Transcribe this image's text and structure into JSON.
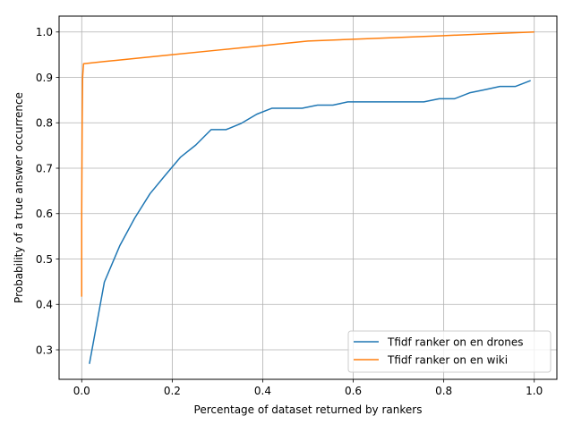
{
  "chart_data": {
    "type": "line",
    "title": "",
    "xlabel": "Percentage of dataset returned by rankers",
    "ylabel": "Probability of a true answer occurrence",
    "xlim": [
      -0.05,
      1.05
    ],
    "ylim": [
      0.235,
      1.035
    ],
    "xticks": [
      0.0,
      0.2,
      0.4,
      0.6,
      0.8,
      1.0
    ],
    "xtick_labels": [
      "0.0",
      "0.2",
      "0.4",
      "0.6",
      "0.8",
      "1.0"
    ],
    "yticks": [
      0.3,
      0.4,
      0.5,
      0.6,
      0.7,
      0.8,
      0.9,
      1.0
    ],
    "ytick_labels": [
      "0.3",
      "0.4",
      "0.5",
      "0.6",
      "0.7",
      "0.8",
      "0.9",
      "1.0"
    ],
    "grid": true,
    "legend_position": "bottom-right",
    "series": [
      {
        "name": "Tfidf ranker on en drones",
        "color": "#1f77b4",
        "x": [
          0.017,
          0.05,
          0.084,
          0.117,
          0.151,
          0.185,
          0.218,
          0.252,
          0.286,
          0.319,
          0.353,
          0.387,
          0.42,
          0.454,
          0.487,
          0.521,
          0.555,
          0.588,
          0.622,
          0.655,
          0.689,
          0.723,
          0.756,
          0.79,
          0.824,
          0.857,
          0.891,
          0.924,
          0.958,
          0.992
        ],
        "y": [
          0.269,
          0.449,
          0.529,
          0.59,
          0.644,
          0.685,
          0.724,
          0.751,
          0.785,
          0.785,
          0.799,
          0.819,
          0.832,
          0.832,
          0.832,
          0.839,
          0.839,
          0.846,
          0.846,
          0.846,
          0.846,
          0.846,
          0.846,
          0.853,
          0.853,
          0.866,
          0.873,
          0.88,
          0.88,
          0.893
        ]
      },
      {
        "name": "Tfidf ranker on en wiki",
        "color": "#ff7f0e",
        "x": [
          0.0,
          0.0,
          0.001,
          0.002,
          0.004,
          0.05,
          0.1,
          0.2,
          0.3,
          0.4,
          0.5,
          0.6,
          0.7,
          0.8,
          0.9,
          1.0
        ],
        "y": [
          0.417,
          0.6,
          0.8,
          0.9,
          0.93,
          0.935,
          0.94,
          0.95,
          0.96,
          0.97,
          0.98,
          0.984,
          0.988,
          0.992,
          0.996,
          1.0
        ]
      }
    ]
  }
}
